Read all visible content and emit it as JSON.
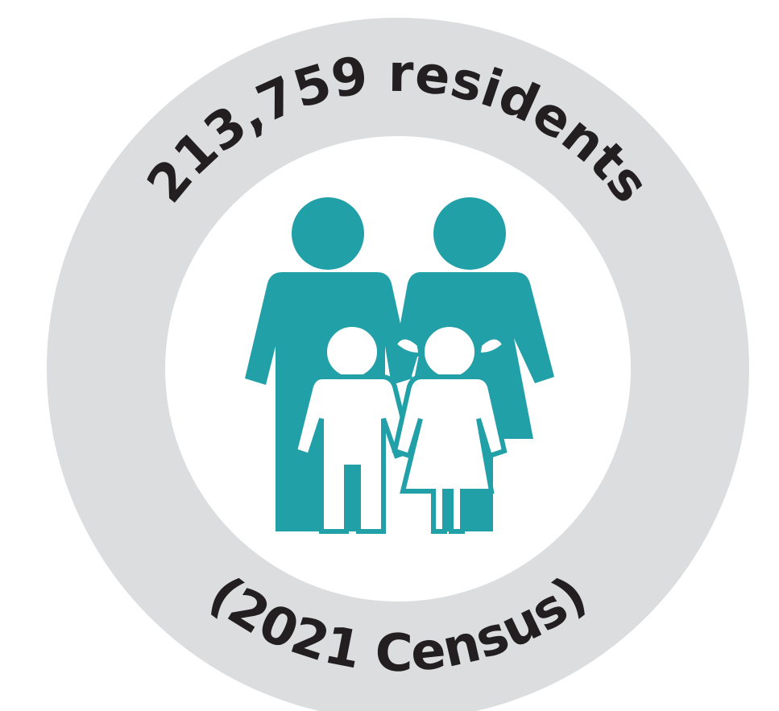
{
  "title": "213,759 residents",
  "subtitle": "(2021 Census)"
}
